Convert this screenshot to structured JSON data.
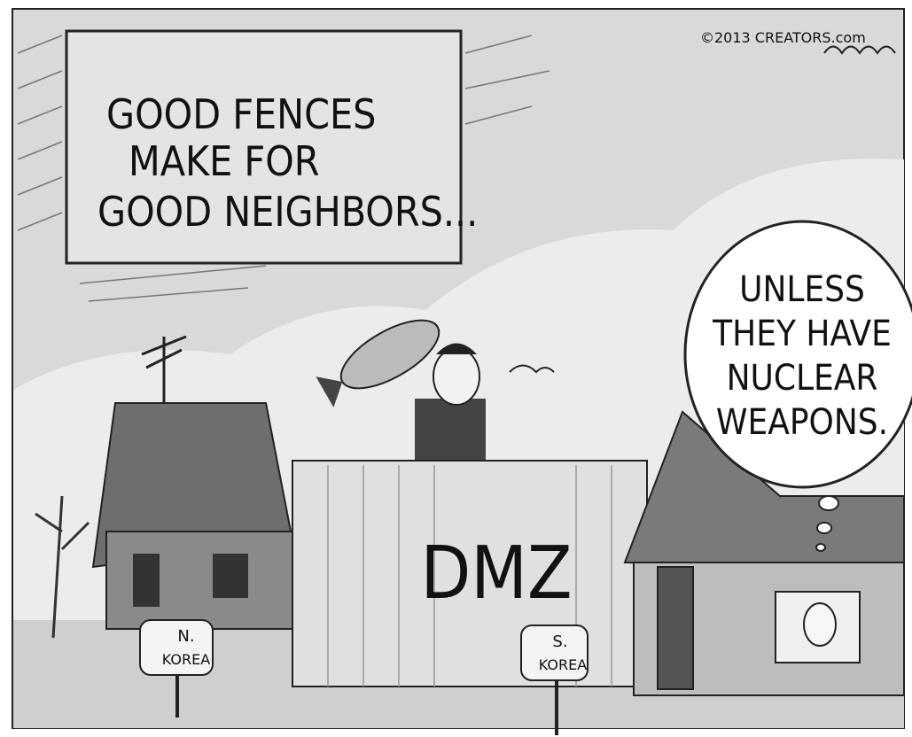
{
  "sign": {
    "lines": [
      "GOOD FENCES",
      "MAKE FOR",
      "GOOD NEIGHBORS..."
    ]
  },
  "thought_bubble": {
    "lines": [
      "UNLESS",
      "THEY HAVE",
      "NUCLEAR",
      "WEAPONS."
    ]
  },
  "fence": {
    "label": "DMZ"
  },
  "mailboxes": [
    {
      "lines": [
        "N.",
        "KOREA"
      ]
    },
    {
      "lines": [
        "S.",
        "KOREA"
      ]
    }
  ],
  "credit": "©2013 CREATORS.com"
}
